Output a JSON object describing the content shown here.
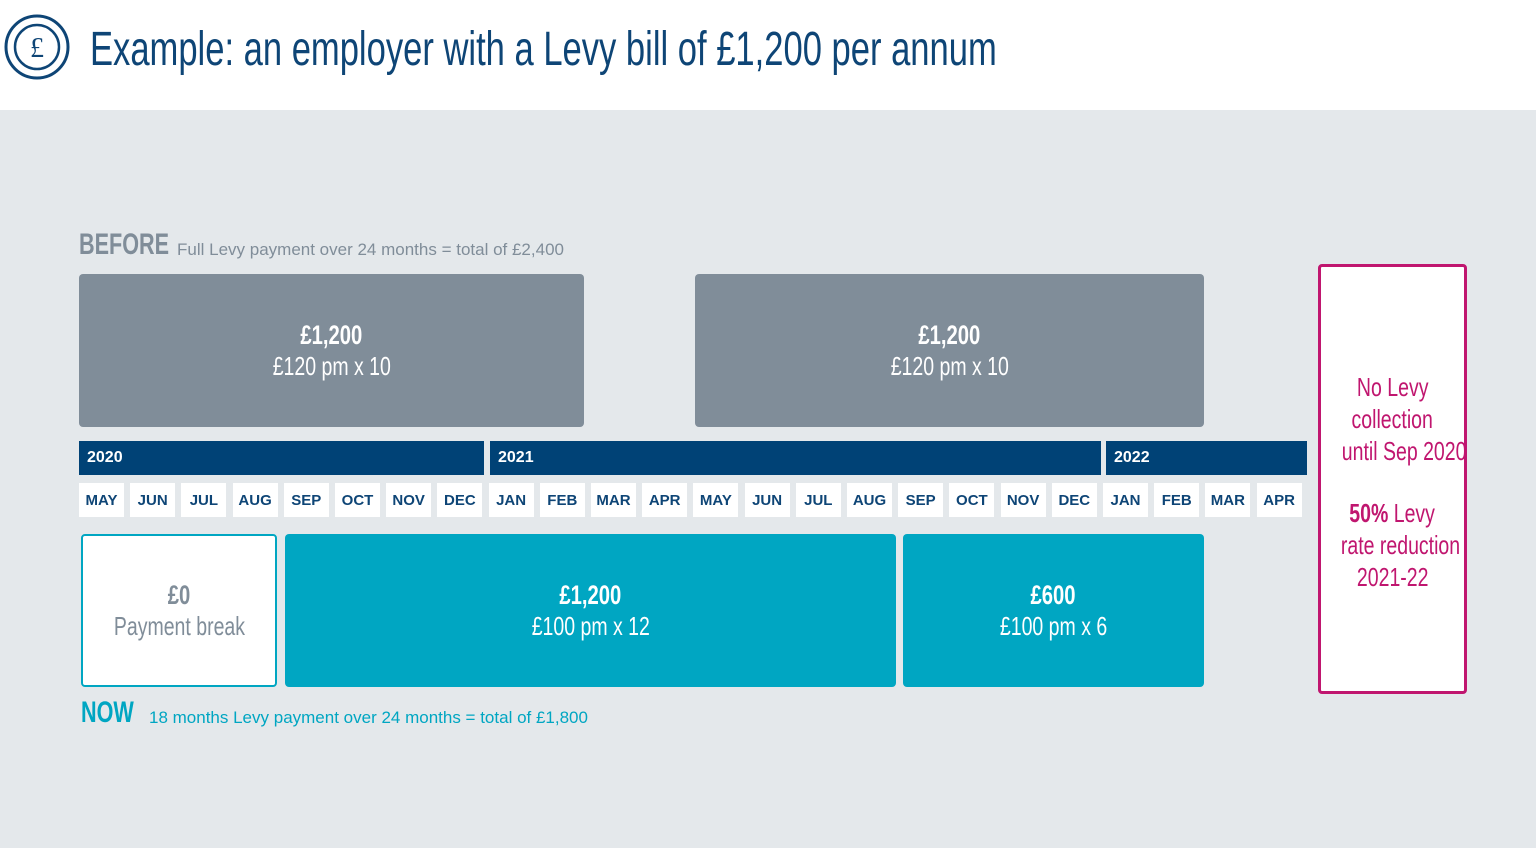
{
  "header": {
    "title": "Example: an employer with a Levy bill of £1,200 per annum",
    "icon": "pound-coin-icon"
  },
  "before": {
    "label": "BEFORE",
    "description": "Full Levy payment over 24 months = total of £2,400",
    "blocks": [
      {
        "amount": "£1,200",
        "detail": "£120 pm x 10"
      },
      {
        "amount": "£1,200",
        "detail": "£120 pm x 10"
      }
    ]
  },
  "years": [
    "2020",
    "2021",
    "2022"
  ],
  "months": [
    "MAY",
    "JUN",
    "JUL",
    "AUG",
    "SEP",
    "OCT",
    "NOV",
    "DEC",
    "JAN",
    "FEB",
    "MAR",
    "APR",
    "MAY",
    "JUN",
    "JUL",
    "AUG",
    "SEP",
    "OCT",
    "NOV",
    "DEC",
    "JAN",
    "FEB",
    "MAR",
    "APR"
  ],
  "now": {
    "label": "NOW",
    "description": "18 months Levy payment over 24 months = total of £1,800",
    "blocks": [
      {
        "amount": "£0",
        "detail": "Payment break"
      },
      {
        "amount": "£1,200",
        "detail": "£100 pm x 12"
      },
      {
        "amount": "£600",
        "detail": "£100 pm x 6"
      }
    ]
  },
  "note": {
    "line1": "No Levy",
    "line2": "collection",
    "line3": "until Sep 2020",
    "pct": "50%",
    "line4": " Levy",
    "line5": "rate reduction",
    "line6": "2021-22"
  },
  "colors": {
    "navy": "#004276",
    "grey": "#808d99",
    "teal": "#00a6c2",
    "magenta": "#c0166f"
  }
}
